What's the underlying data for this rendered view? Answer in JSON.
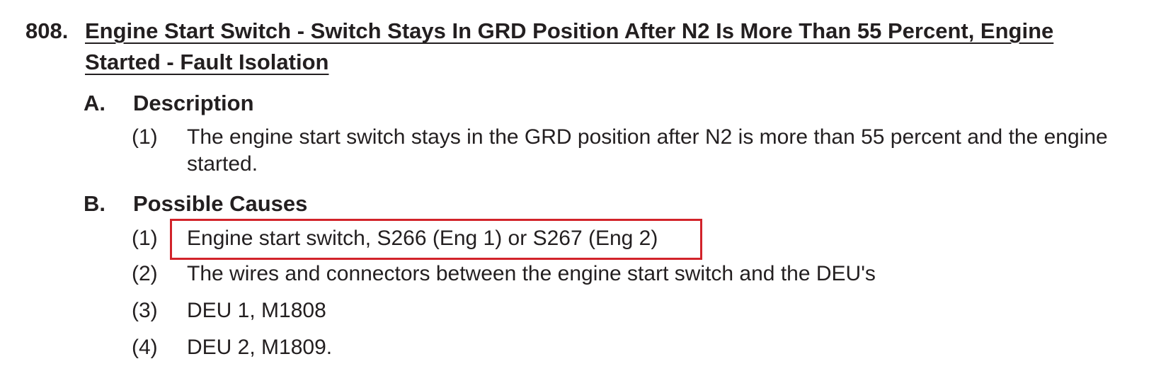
{
  "heading": {
    "number": "808.",
    "title": "Engine Start Switch - Switch Stays In GRD Position After N2 Is More Than 55 Percent, Engine Started - Fault Isolation"
  },
  "sections": [
    {
      "letter": "A.",
      "title": "Description",
      "items": [
        {
          "num": "(1)",
          "text": "The engine start switch stays in the GRD position after N2 is more than 55 percent and the engine started."
        }
      ]
    },
    {
      "letter": "B.",
      "title": "Possible Causes",
      "items": [
        {
          "num": "(1)",
          "text": "Engine start switch, S266 (Eng 1) or S267 (Eng 2)",
          "highlighted": true
        },
        {
          "num": "(2)",
          "text": "The wires and connectors between the engine start switch and the DEU's"
        },
        {
          "num": "(3)",
          "text": "DEU 1, M1808"
        },
        {
          "num": "(4)",
          "text": "DEU 2, M1809."
        }
      ]
    }
  ],
  "colors": {
    "text": "#231f20",
    "highlight_border": "#d2232a"
  }
}
